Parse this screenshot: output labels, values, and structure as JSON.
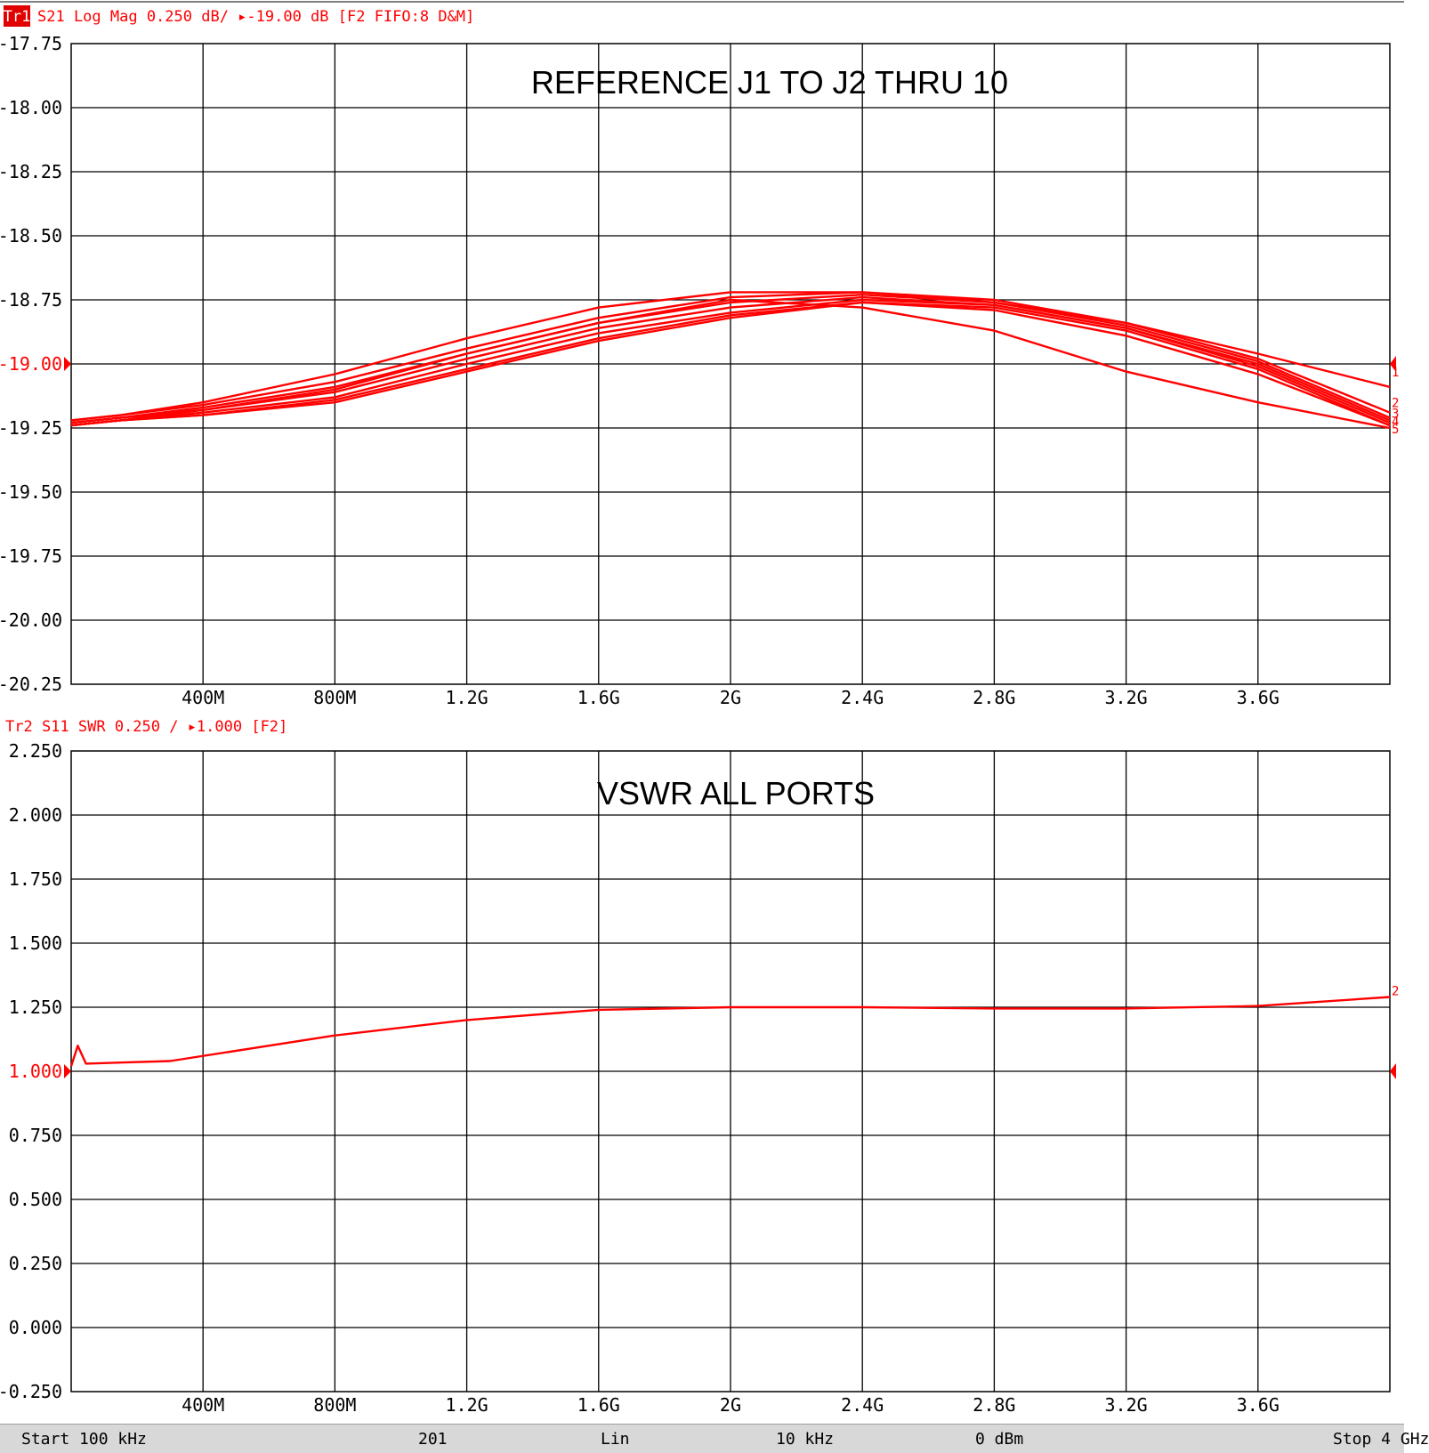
{
  "app": {
    "trace1_tag": "Tr1",
    "trace1_header": "S21 Log Mag 0.250 dB/ ▸-19.00 dB [F2 FIFO:8 D&M]",
    "trace2_header": "Tr2 S11 SWR 0.250 / ▸1.000  [F2]",
    "colors": {
      "trace": "#ff0000",
      "grid": "#000000",
      "status_bg": "#d8d8d8",
      "tag_bg": "#e00000"
    }
  },
  "status": {
    "start": "Start 100 kHz",
    "points": "201",
    "sweep_type": "Lin",
    "ifbw": "10 kHz",
    "power": "0 dBm",
    "stop": "Stop 4 GHz"
  },
  "chart_data": [
    {
      "type": "line",
      "title": "REFERENCE J1 TO J2 THRU 10",
      "xlim": [
        0.0001,
        4.0
      ],
      "ylim": [
        -20.25,
        -17.75
      ],
      "ref_level": -19.0,
      "x_ticks": [
        0.4,
        0.8,
        1.2,
        1.6,
        2.0,
        2.4,
        2.8,
        3.2,
        3.6
      ],
      "x_tick_labels": [
        "400M",
        "800M",
        "1.2G",
        "1.6G",
        "2G",
        "2.4G",
        "2.8G",
        "3.2G",
        "3.6G"
      ],
      "y_tick_labels": [
        "-17.75",
        "-18.00",
        "-18.25",
        "-18.50",
        "-18.75",
        "-19.00",
        "-19.25",
        "-19.50",
        "-19.75",
        "-20.00",
        "-20.25"
      ],
      "x": [
        0.0001,
        0.15,
        0.4,
        0.8,
        1.2,
        1.6,
        2.0,
        2.4,
        2.8,
        3.2,
        3.6,
        4.0
      ],
      "series": [
        {
          "values": [
            -19.22,
            -19.2,
            -19.15,
            -19.04,
            -18.9,
            -18.78,
            -18.72,
            -18.72,
            -18.76,
            -18.84,
            -18.96,
            -19.09
          ]
        },
        {
          "values": [
            -19.22,
            -19.2,
            -19.16,
            -19.07,
            -18.94,
            -18.82,
            -18.74,
            -18.72,
            -18.75,
            -18.84,
            -18.98,
            -19.19
          ]
        },
        {
          "values": [
            -19.23,
            -19.21,
            -19.17,
            -19.09,
            -18.96,
            -18.84,
            -18.76,
            -18.73,
            -18.76,
            -18.85,
            -18.99,
            -19.21
          ]
        },
        {
          "values": [
            -19.23,
            -19.21,
            -19.18,
            -19.11,
            -18.98,
            -18.86,
            -18.78,
            -18.74,
            -18.77,
            -18.86,
            -19.0,
            -19.22
          ]
        },
        {
          "values": [
            -19.24,
            -19.22,
            -19.19,
            -19.13,
            -19.0,
            -18.88,
            -18.8,
            -18.75,
            -18.77,
            -18.86,
            -19.01,
            -19.23
          ]
        },
        {
          "values": [
            -19.24,
            -19.22,
            -19.2,
            -19.14,
            -19.02,
            -18.9,
            -18.81,
            -18.76,
            -18.78,
            -18.87,
            -19.02,
            -19.24
          ]
        },
        {
          "values": [
            -19.24,
            -19.22,
            -19.2,
            -19.15,
            -19.03,
            -18.91,
            -18.82,
            -18.76,
            -18.79,
            -18.89,
            -19.04,
            -19.24
          ]
        },
        {
          "values": [
            -19.24,
            -19.22,
            -19.18,
            -19.1,
            -18.96,
            -18.84,
            -18.75,
            -18.78,
            -18.87,
            -19.03,
            -19.15,
            -19.25
          ]
        }
      ],
      "marker_labels": [
        "1",
        "2",
        "3",
        "4",
        "5"
      ]
    },
    {
      "type": "line",
      "title": "VSWR ALL PORTS",
      "xlim": [
        0.0001,
        4.0
      ],
      "ylim": [
        -0.25,
        2.25
      ],
      "ref_level": 1.0,
      "x_ticks": [
        0.4,
        0.8,
        1.2,
        1.6,
        2.0,
        2.4,
        2.8,
        3.2,
        3.6
      ],
      "x_tick_labels": [
        "400M",
        "800M",
        "1.2G",
        "1.6G",
        "2G",
        "2.4G",
        "2.8G",
        "3.2G",
        "3.6G"
      ],
      "y_tick_labels": [
        "2.250",
        "2.000",
        "1.750",
        "1.500",
        "1.250",
        "1.000",
        "0.750",
        "0.500",
        "0.250",
        "0.000",
        "-0.250"
      ],
      "x": [
        0.0001,
        0.02,
        0.045,
        0.3,
        0.8,
        1.2,
        1.6,
        2.0,
        2.4,
        2.8,
        3.2,
        3.6,
        4.0
      ],
      "series": [
        {
          "values": [
            1.02,
            1.1,
            1.03,
            1.04,
            1.14,
            1.2,
            1.24,
            1.25,
            1.25,
            1.245,
            1.245,
            1.255,
            1.29
          ]
        }
      ],
      "marker_labels": [
        "2"
      ]
    }
  ]
}
